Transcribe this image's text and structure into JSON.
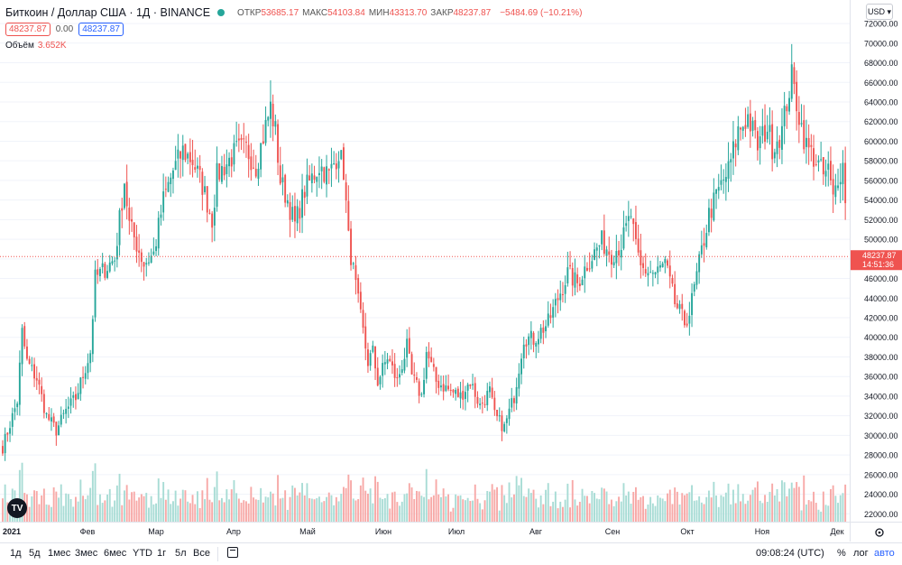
{
  "symbol": {
    "title": "Биткоин / Доллар США · 1Д · BINANCE",
    "open_label": "ОТКР",
    "open": "53685.17",
    "high_label": "МАКС",
    "high": "54103.84",
    "low_label": "МИН",
    "low": "43313.70",
    "close_label": "ЗАКР",
    "close": "48237.87",
    "change": "−5484.69 (−10.21%)"
  },
  "quote": {
    "sell": "48237.87",
    "spread": "0.00",
    "buy": "48237.87"
  },
  "volume": {
    "label": "Объём",
    "value": "3.652K"
  },
  "currency": "USD ▾",
  "logo_text": "TV",
  "last_price": {
    "price": "48237.87",
    "countdown": "14:51:36"
  },
  "bottom_bar": {
    "ranges": [
      "1д",
      "5д",
      "1мес",
      "3мес",
      "6мес",
      "YTD",
      "1г",
      "5л",
      "Все"
    ],
    "clock": "09:08:24 (UTC)",
    "percent": "%",
    "log": "лог",
    "auto": "авто"
  },
  "colors": {
    "up": "#26a69a",
    "down": "#ef5350",
    "vol_up": "#a8dcd5",
    "vol_down": "#f7a9a7",
    "grid": "#f0f3fa",
    "axis_text": "#131722",
    "brand": "#2962ff"
  },
  "chart_data": {
    "type": "candlestick",
    "title": "Биткоин / Доллар США",
    "interval": "1Д",
    "y_axis": {
      "position": "right",
      "ticks": [
        22000,
        24000,
        26000,
        28000,
        30000,
        32000,
        34000,
        36000,
        38000,
        40000,
        42000,
        44000,
        46000,
        48000,
        50000,
        52000,
        54000,
        56000,
        58000,
        60000,
        62000,
        64000,
        66000,
        68000,
        70000,
        72000
      ],
      "range": [
        21200,
        74400
      ]
    },
    "x_axis": {
      "labels": [
        "2021",
        "Фев",
        "Мар",
        "Апр",
        "Май",
        "Июн",
        "Июл",
        "Авг",
        "Сен",
        "Окт",
        "Ноя",
        "Дек"
      ]
    },
    "last_price_line": 48237.87,
    "grid": true,
    "anchors": [
      [
        0,
        28800
      ],
      [
        6,
        33500
      ],
      [
        8,
        40500
      ],
      [
        10,
        37500
      ],
      [
        14,
        35800
      ],
      [
        18,
        32000
      ],
      [
        22,
        30500
      ],
      [
        26,
        32500
      ],
      [
        30,
        33800
      ],
      [
        36,
        38500
      ],
      [
        38,
        46000
      ],
      [
        46,
        48000
      ],
      [
        50,
        56000
      ],
      [
        52,
        51500
      ],
      [
        58,
        47500
      ],
      [
        62,
        48500
      ],
      [
        66,
        54000
      ],
      [
        70,
        57000
      ],
      [
        74,
        59000
      ],
      [
        78,
        58000
      ],
      [
        82,
        55500
      ],
      [
        86,
        52000
      ],
      [
        88,
        56500
      ],
      [
        96,
        59000
      ],
      [
        100,
        59200
      ],
      [
        104,
        57500
      ],
      [
        110,
        63500
      ],
      [
        112,
        61000
      ],
      [
        114,
        56000
      ],
      [
        117,
        54000
      ],
      [
        120,
        51500
      ],
      [
        124,
        55000
      ],
      [
        130,
        57500
      ],
      [
        134,
        56500
      ],
      [
        138,
        59000
      ],
      [
        140,
        57000
      ],
      [
        142,
        50000
      ],
      [
        146,
        43500
      ],
      [
        150,
        37500
      ],
      [
        152,
        38500
      ],
      [
        154,
        35500
      ],
      [
        158,
        38000
      ],
      [
        162,
        35500
      ],
      [
        166,
        39000
      ],
      [
        168,
        36000
      ],
      [
        172,
        34000
      ],
      [
        174,
        38500
      ],
      [
        178,
        35500
      ],
      [
        184,
        34500
      ],
      [
        188,
        34000
      ],
      [
        192,
        35500
      ],
      [
        196,
        33000
      ],
      [
        200,
        34500
      ],
      [
        202,
        32000
      ],
      [
        206,
        30800
      ],
      [
        210,
        34000
      ],
      [
        214,
        40000
      ],
      [
        218,
        39800
      ],
      [
        224,
        41500
      ],
      [
        228,
        44000
      ],
      [
        232,
        46500
      ],
      [
        236,
        45500
      ],
      [
        240,
        47500
      ],
      [
        246,
        49800
      ],
      [
        250,
        48500
      ],
      [
        254,
        49500
      ],
      [
        258,
        52500
      ],
      [
        260,
        49000
      ],
      [
        262,
        47000
      ],
      [
        268,
        46500
      ],
      [
        272,
        47500
      ],
      [
        276,
        43500
      ],
      [
        280,
        41500
      ],
      [
        282,
        42500
      ],
      [
        286,
        47500
      ],
      [
        290,
        52500
      ],
      [
        294,
        55000
      ],
      [
        298,
        57000
      ],
      [
        302,
        61000
      ],
      [
        306,
        62500
      ],
      [
        310,
        59500
      ],
      [
        314,
        61500
      ],
      [
        316,
        59500
      ],
      [
        320,
        61000
      ],
      [
        322,
        64000
      ],
      [
        324,
        66500
      ],
      [
        326,
        64000
      ],
      [
        328,
        61500
      ],
      [
        330,
        59500
      ],
      [
        334,
        58000
      ],
      [
        337,
        56500
      ],
      [
        339,
        57000
      ],
      [
        341,
        54000
      ],
      [
        343,
        56500
      ],
      [
        345,
        57500
      ],
      [
        346,
        53685
      ]
    ]
  }
}
